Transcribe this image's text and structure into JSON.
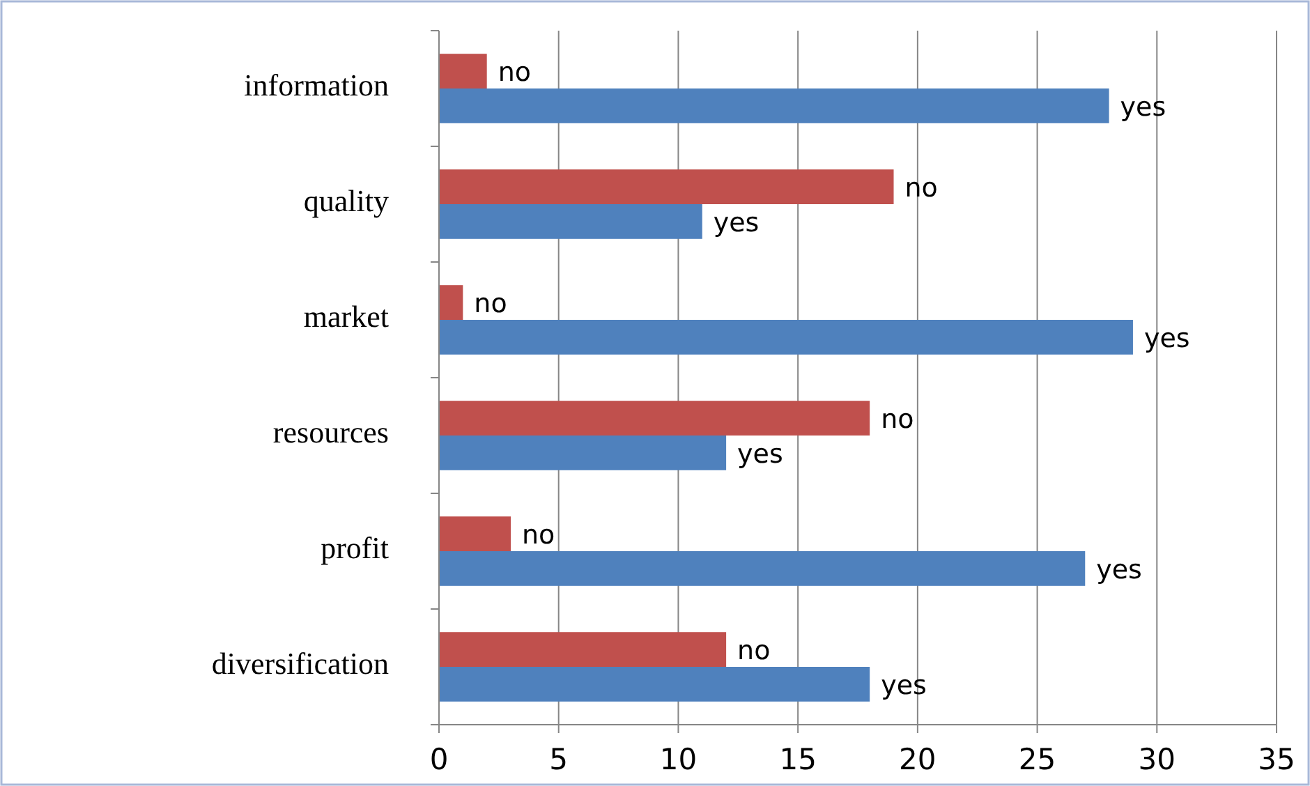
{
  "chart_data": {
    "type": "bar",
    "orientation": "horizontal",
    "categories": [
      "information",
      "quality",
      "market",
      "resources",
      "profit",
      "diversification"
    ],
    "series": [
      {
        "name": "no",
        "color": "#c0504d",
        "values": [
          2,
          19,
          1,
          18,
          3,
          12
        ]
      },
      {
        "name": "yes",
        "color": "#4f81bd",
        "values": [
          28,
          11,
          29,
          12,
          27,
          18
        ]
      }
    ],
    "xlim": [
      0,
      35
    ],
    "xticks": [
      0,
      5,
      10,
      15,
      20,
      25,
      30,
      35
    ],
    "grid": "x",
    "legend": false
  }
}
